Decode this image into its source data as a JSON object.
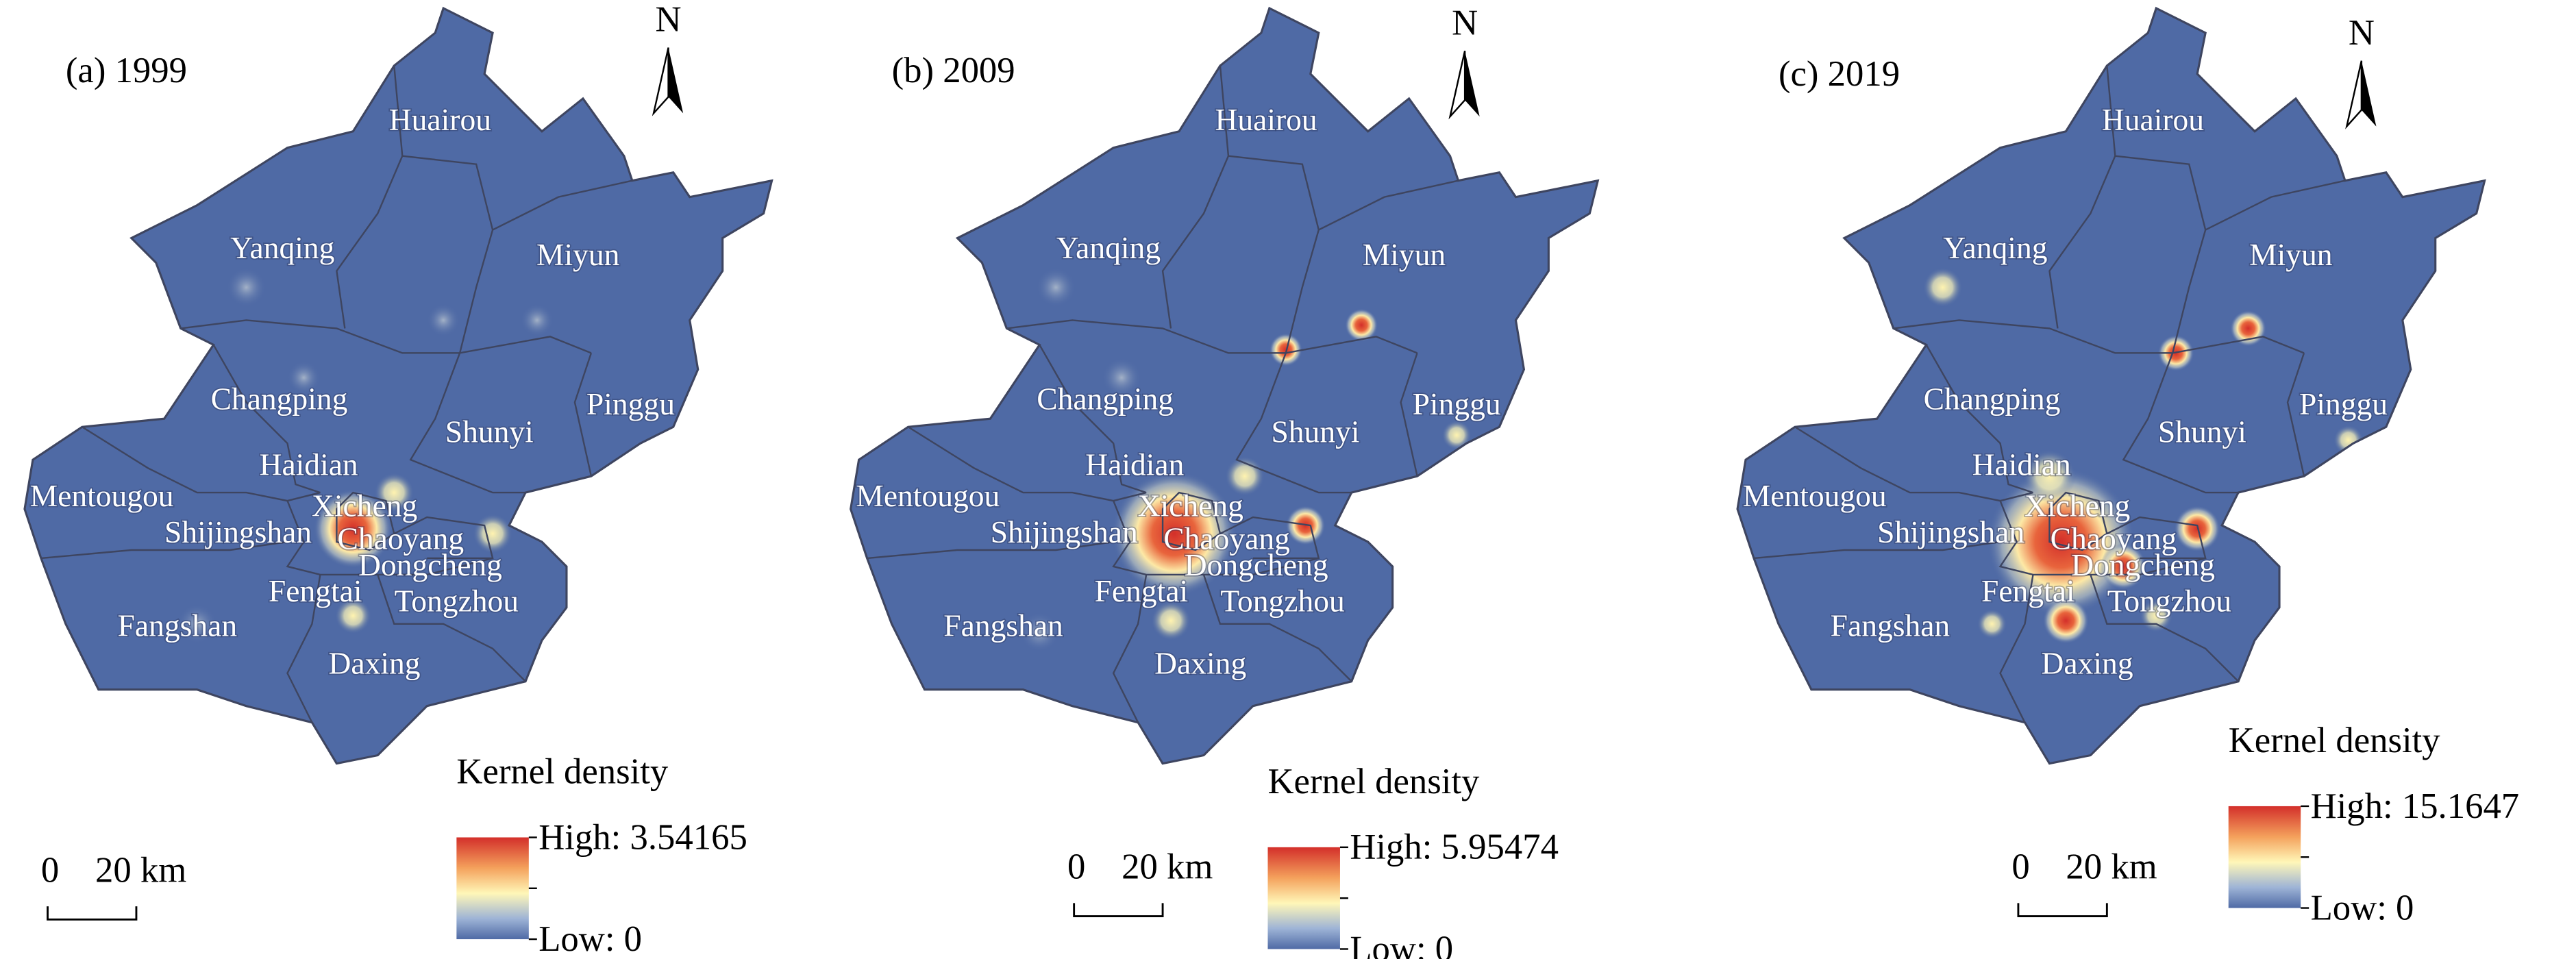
{
  "panels": [
    {
      "label": "(a) 1999",
      "north": "N",
      "districts": [
        "Huairou",
        "Yanqing",
        "Miyun",
        "Changping",
        "Pinggu",
        "Shunyi",
        "Haidian",
        "Mentougou",
        "Xicheng",
        "Shijingshan",
        "Chaoyang",
        "Dongcheng",
        "Fengtai",
        "Tongzhou",
        "Fangshan",
        "Daxing"
      ],
      "legend": {
        "title": "Kernel density",
        "high": "High: 3.54165",
        "low": "Low: 0"
      },
      "scale": {
        "zero": "0",
        "distance": "20 km"
      }
    },
    {
      "label": "(b) 2009",
      "north": "N",
      "districts": [
        "Huairou",
        "Yanqing",
        "Miyun",
        "Changping",
        "Pinggu",
        "Shunyi",
        "Haidian",
        "Mentougou",
        "Xicheng",
        "Shijingshan",
        "Chaoyang",
        "Dongcheng",
        "Fengtai",
        "Tongzhou",
        "Fangshan",
        "Daxing"
      ],
      "legend": {
        "title": "Kernel density",
        "high": "High: 5.95474",
        "low": "Low: 0"
      },
      "scale": {
        "zero": "0",
        "distance": "20 km"
      }
    },
    {
      "label": "(c) 2019",
      "north": "N",
      "districts": [
        "Huairou",
        "Yanqing",
        "Miyun",
        "Changping",
        "Pinggu",
        "Shunyi",
        "Haidian",
        "Mentougou",
        "Xicheng",
        "Shijingshan",
        "Chaoyang",
        "Dongcheng",
        "Fengtai",
        "Tongzhou",
        "Fangshan",
        "Daxing"
      ],
      "legend": {
        "title": "Kernel density",
        "high": "High: 15.1647",
        "low": "Low: 0"
      },
      "scale": {
        "zero": "0",
        "distance": "20 km"
      }
    }
  ]
}
